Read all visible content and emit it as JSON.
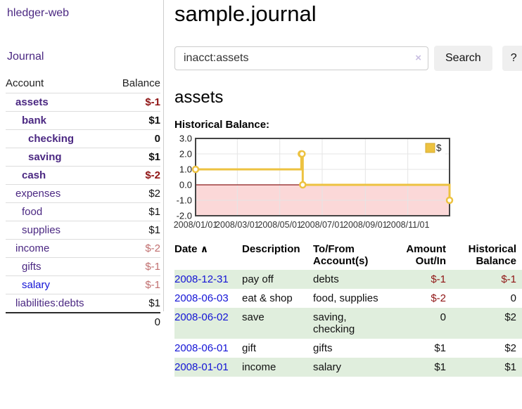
{
  "app": {
    "brand": "hledger-web",
    "nav_journal": "Journal"
  },
  "sidebar": {
    "header": {
      "account": "Account",
      "balance": "Balance"
    },
    "rows": [
      {
        "name": "assets",
        "balance": "$-1",
        "indent": 1,
        "bold": true,
        "neg": "strong",
        "link": "purple"
      },
      {
        "name": "bank",
        "balance": "$1",
        "indent": 2,
        "bold": true,
        "neg": "none",
        "link": "purple"
      },
      {
        "name": "checking",
        "balance": "0",
        "indent": 3,
        "bold": true,
        "neg": "none",
        "link": "purple"
      },
      {
        "name": "saving",
        "balance": "$1",
        "indent": 3,
        "bold": true,
        "neg": "none",
        "link": "purple"
      },
      {
        "name": "cash",
        "balance": "$-2",
        "indent": 2,
        "bold": true,
        "neg": "strong",
        "link": "purple"
      },
      {
        "name": "expenses",
        "balance": "$2",
        "indent": 1,
        "bold": false,
        "neg": "none",
        "link": "purple"
      },
      {
        "name": "food",
        "balance": "$1",
        "indent": 2,
        "bold": false,
        "neg": "none",
        "link": "purple"
      },
      {
        "name": "supplies",
        "balance": "$1",
        "indent": 2,
        "bold": false,
        "neg": "none",
        "link": "purple"
      },
      {
        "name": "income",
        "balance": "$-2",
        "indent": 1,
        "bold": false,
        "neg": "soft",
        "link": "purple"
      },
      {
        "name": "gifts",
        "balance": "$-1",
        "indent": 2,
        "bold": false,
        "neg": "soft",
        "link": "purple"
      },
      {
        "name": "salary",
        "balance": "$-1",
        "indent": 2,
        "bold": false,
        "neg": "soft",
        "link": "blue"
      },
      {
        "name": "liabilities:debts",
        "balance": "$1",
        "indent": 1,
        "bold": false,
        "neg": "none",
        "link": "purple"
      }
    ],
    "total": "0"
  },
  "header": {
    "title": "sample.journal"
  },
  "search": {
    "value": "inacct:assets",
    "clear_label": "×",
    "button_label": "Search",
    "help_label": "?"
  },
  "account_page": {
    "title": "assets",
    "chart_heading": "Historical Balance:"
  },
  "chart_data": {
    "type": "line",
    "step": true,
    "title": "Historical Balance",
    "series": [
      {
        "name": "$",
        "points": [
          [
            "2008-01-01",
            1
          ],
          [
            "2008-06-01",
            2
          ],
          [
            "2008-06-02",
            2
          ],
          [
            "2008-06-03",
            0
          ],
          [
            "2008-12-31",
            -1
          ]
        ]
      }
    ],
    "x_range": [
      "2008-01-01",
      "2008-12-31"
    ],
    "x_ticks": [
      "2008/01/01",
      "2008/03/01",
      "2008/05/01",
      "2008/07/01",
      "2008/09/01",
      "2008/11/01"
    ],
    "y_ticks": [
      3.0,
      2.0,
      1.0,
      0.0,
      -1.0,
      -2.0
    ],
    "ylim": [
      -2,
      3
    ],
    "grid": true,
    "legend_position": "top-right",
    "colors": {
      "line": "#edc240",
      "marker_fill": "#ffffff",
      "negative_region": "#fbd8d8",
      "zero_line": "#8b1a1a",
      "gridline": "#e5e5e5",
      "border": "#444444"
    }
  },
  "table": {
    "sort_arrow": "∧",
    "headers": [
      "Date",
      "Description",
      "To/From Account(s)",
      "Amount Out/In",
      "Historical Balance"
    ],
    "rows": [
      {
        "date": "2008-12-31",
        "description": "pay off",
        "accounts": "debts",
        "amount": "$-1",
        "balance": "$-1",
        "amount_neg": true,
        "balance_neg": true,
        "stripe": true
      },
      {
        "date": "2008-06-03",
        "description": "eat & shop",
        "accounts": "food, supplies",
        "amount": "$-2",
        "balance": "0",
        "amount_neg": true,
        "balance_neg": false,
        "stripe": false
      },
      {
        "date": "2008-06-02",
        "description": "save",
        "accounts": "saving, checking",
        "amount": "0",
        "balance": "$2",
        "amount_neg": false,
        "balance_neg": false,
        "stripe": true
      },
      {
        "date": "2008-06-01",
        "description": "gift",
        "accounts": "gifts",
        "amount": "$1",
        "balance": "$2",
        "amount_neg": false,
        "balance_neg": false,
        "stripe": false
      },
      {
        "date": "2008-01-01",
        "description": "income",
        "accounts": "salary",
        "amount": "$1",
        "balance": "$1",
        "amount_neg": false,
        "balance_neg": false,
        "stripe": true
      }
    ]
  }
}
